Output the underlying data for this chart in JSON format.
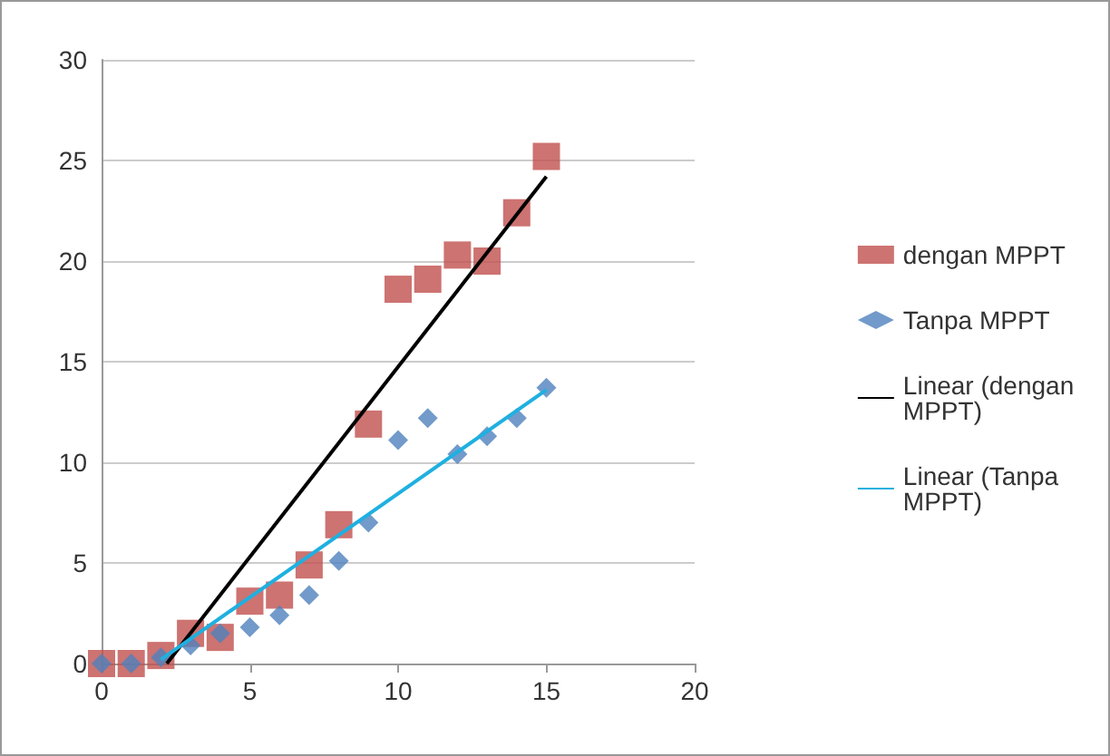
{
  "chart_data": {
    "type": "scatter",
    "x": [
      0,
      1,
      2,
      3,
      4,
      5,
      6,
      7,
      8,
      9,
      10,
      11,
      12,
      13,
      14,
      15
    ],
    "series": [
      {
        "name": "dengan MPPT",
        "color": "#c0504d",
        "marker": "square",
        "values": [
          0,
          0,
          0.4,
          1.5,
          1.3,
          3.1,
          3.4,
          4.9,
          6.9,
          11.9,
          18.6,
          19.1,
          20.3,
          20.0,
          22.4,
          25.2
        ]
      },
      {
        "name": "Tanpa MPPT",
        "color": "#4f81bd",
        "marker": "diamond",
        "values": [
          0,
          0,
          0.3,
          0.9,
          1.5,
          1.8,
          2.4,
          3.4,
          5.1,
          7.0,
          11.1,
          12.2,
          10.4,
          11.3,
          12.2,
          13.7
        ]
      },
      {
        "name": "Linear (dengan MPPT)",
        "type": "line",
        "color": "#000000",
        "marker": "none",
        "x": [
          2.2,
          15
        ],
        "values": [
          0,
          24.2
        ]
      },
      {
        "name": "Linear (Tanpa MPPT)",
        "type": "line",
        "color": "#1fb0e0",
        "marker": "none",
        "x": [
          2,
          15
        ],
        "values": [
          0.2,
          13.6
        ]
      }
    ],
    "xlim": [
      0,
      20
    ],
    "xticks": [
      0,
      5,
      10,
      15,
      20
    ],
    "ylim": [
      0,
      30
    ],
    "yticks": [
      0,
      5,
      10,
      15,
      20,
      25,
      30
    ],
    "grid": "y",
    "legend": "right"
  }
}
